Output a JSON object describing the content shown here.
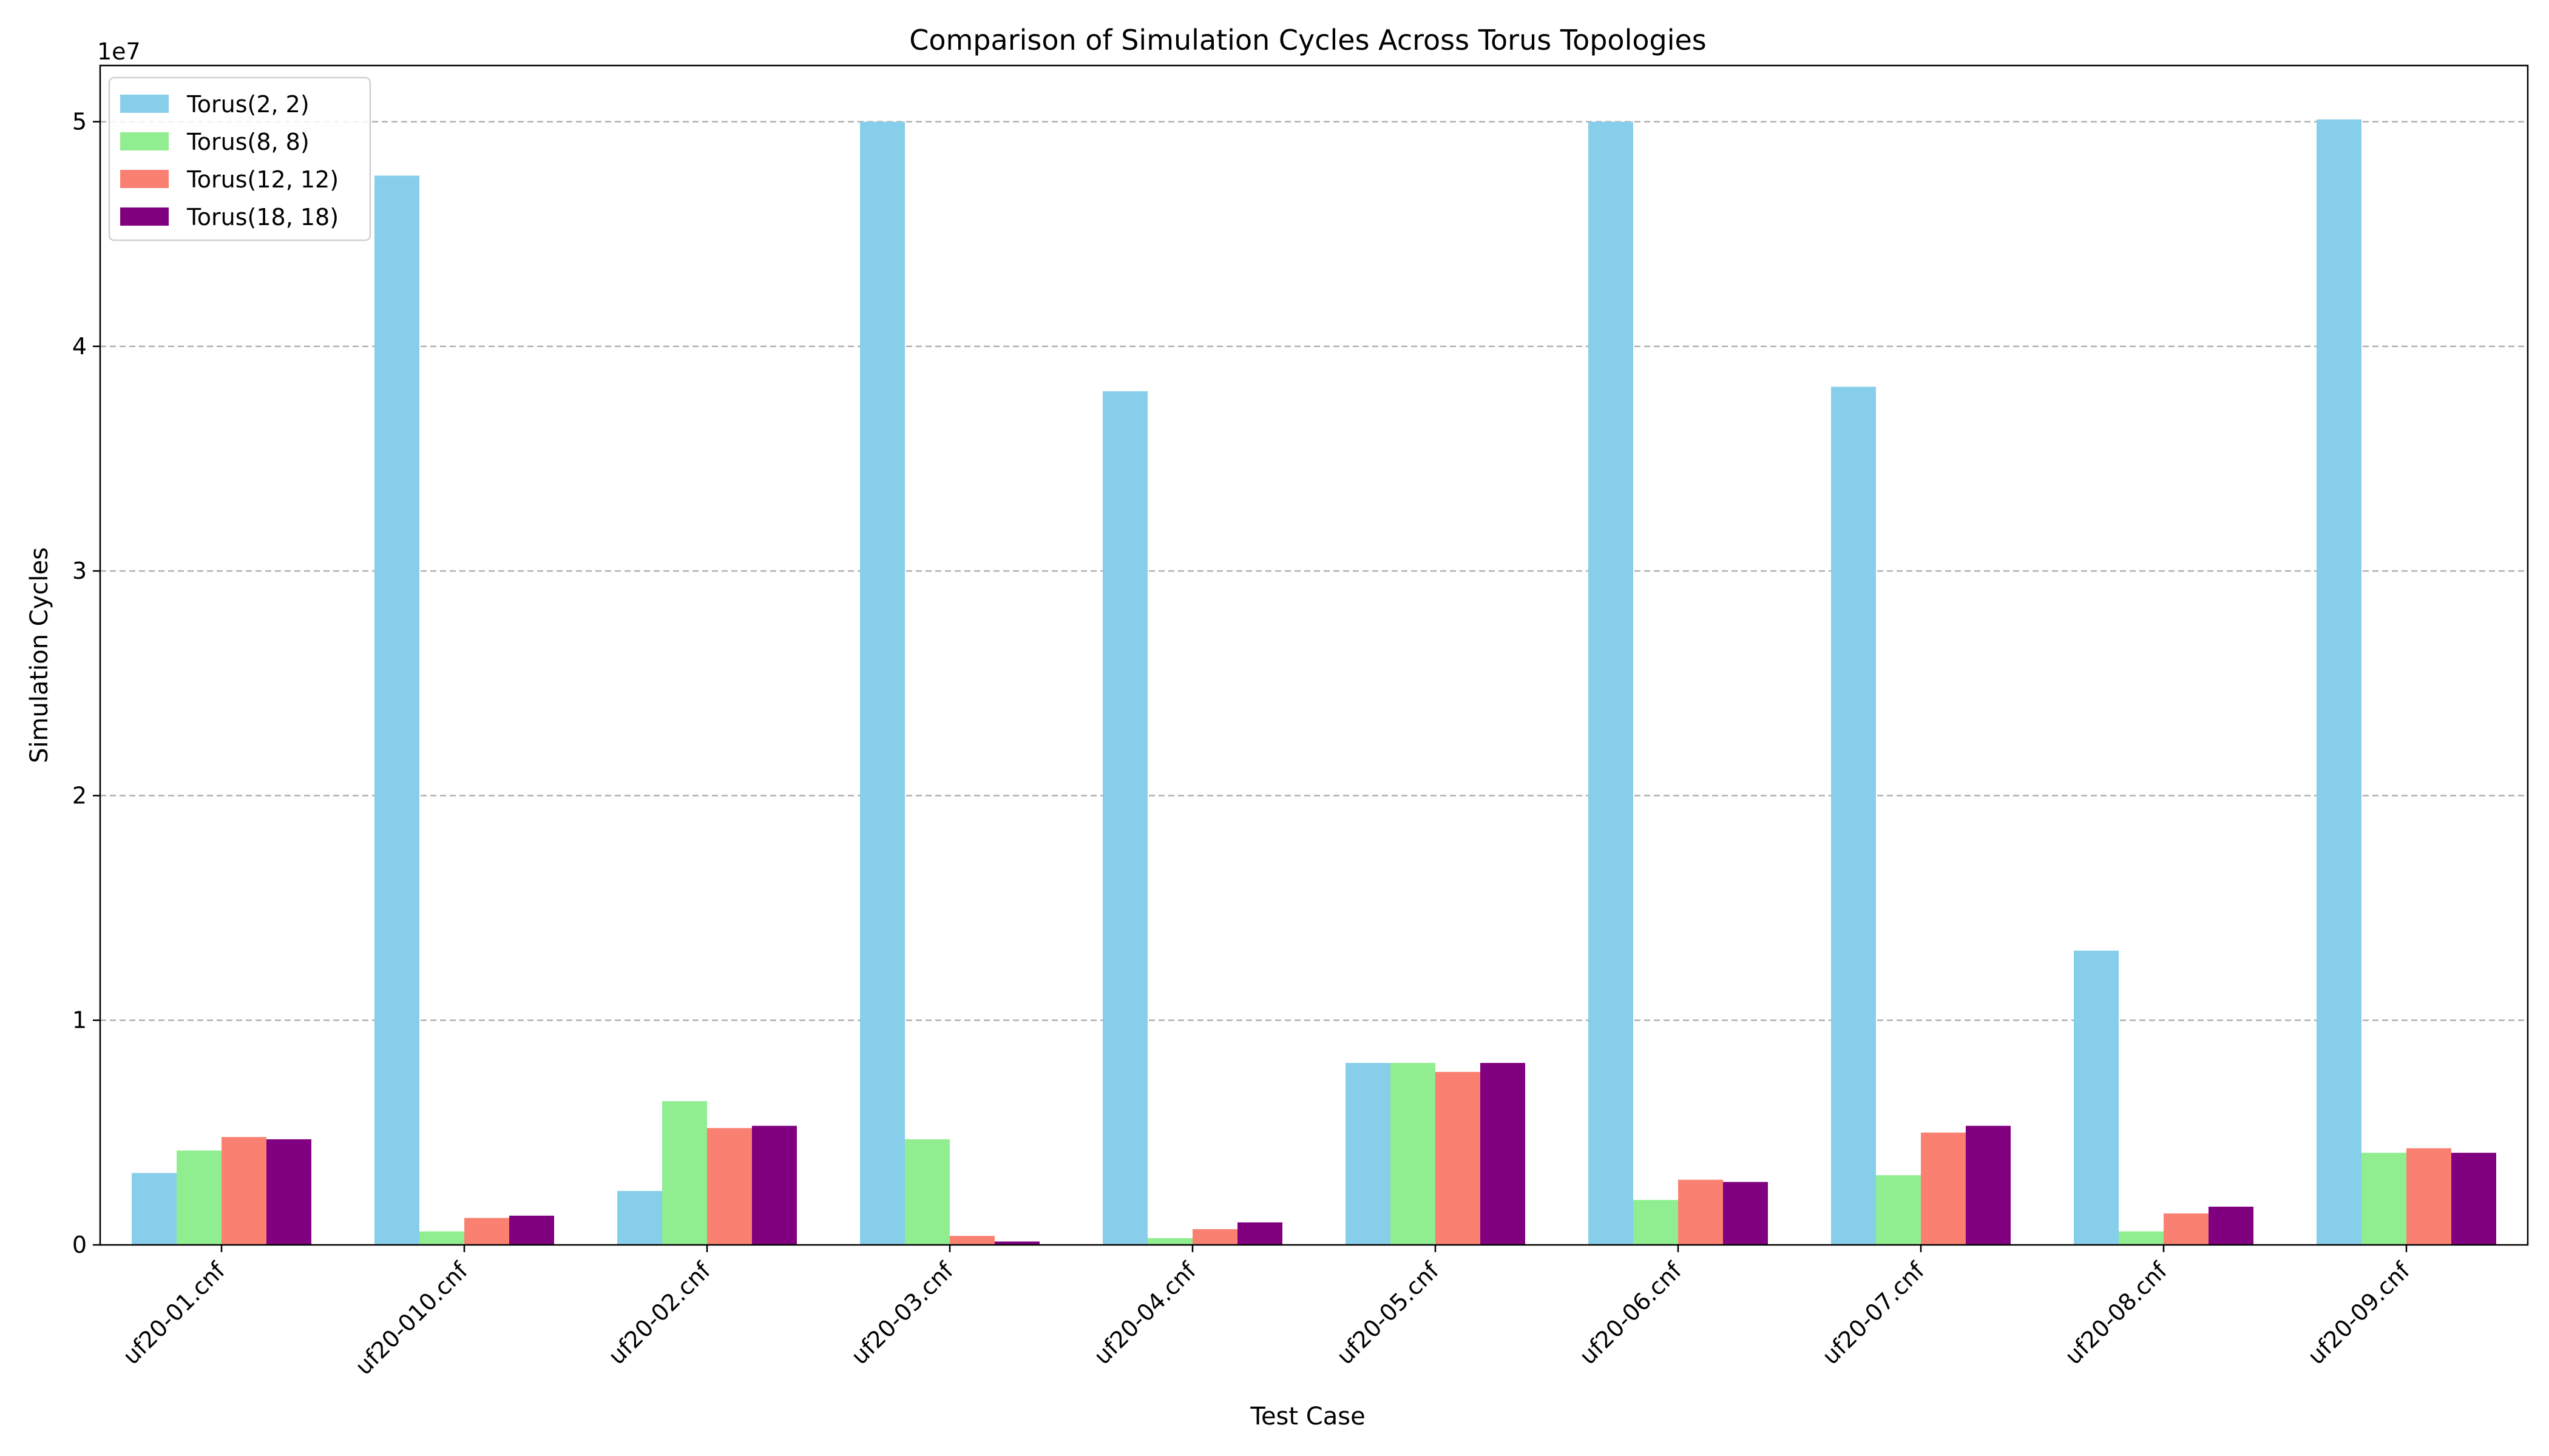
{
  "chart_data": {
    "type": "bar",
    "title": "Comparison of Simulation Cycles Across Torus Topologies",
    "xlabel": "Test Case",
    "ylabel": "Simulation Cycles",
    "y_offset_label": "1e7",
    "y_tick_labels": [
      "0",
      "1",
      "2",
      "3",
      "4",
      "5"
    ],
    "y_tick_values": [
      0,
      10000000,
      20000000,
      30000000,
      40000000,
      50000000
    ],
    "ylim": [
      0,
      52500000
    ],
    "grid": "y-dashed",
    "legend_position": "top-left",
    "categories": [
      "uf20-01.cnf",
      "uf20-010.cnf",
      "uf20-02.cnf",
      "uf20-03.cnf",
      "uf20-04.cnf",
      "uf20-05.cnf",
      "uf20-06.cnf",
      "uf20-07.cnf",
      "uf20-08.cnf",
      "uf20-09.cnf"
    ],
    "series": [
      {
        "name": "Torus(2, 2)",
        "color": "#87ceeb",
        "values": [
          3200000,
          47600000,
          2400000,
          50000000,
          38000000,
          8100000,
          50000000,
          38200000,
          13100000,
          50100000
        ]
      },
      {
        "name": "Torus(8, 8)",
        "color": "#90ee90",
        "values": [
          4200000,
          600000,
          6400000,
          4700000,
          300000,
          8100000,
          2000000,
          3100000,
          600000,
          4100000
        ]
      },
      {
        "name": "Torus(12, 12)",
        "color": "#fa8072",
        "values": [
          4800000,
          1200000,
          5200000,
          400000,
          700000,
          7700000,
          2900000,
          5000000,
          1400000,
          4300000
        ]
      },
      {
        "name": "Torus(18, 18)",
        "color": "#800080",
        "values": [
          4700000,
          1300000,
          5300000,
          150000,
          1000000,
          8100000,
          2800000,
          5300000,
          1700000,
          4100000
        ]
      }
    ]
  }
}
